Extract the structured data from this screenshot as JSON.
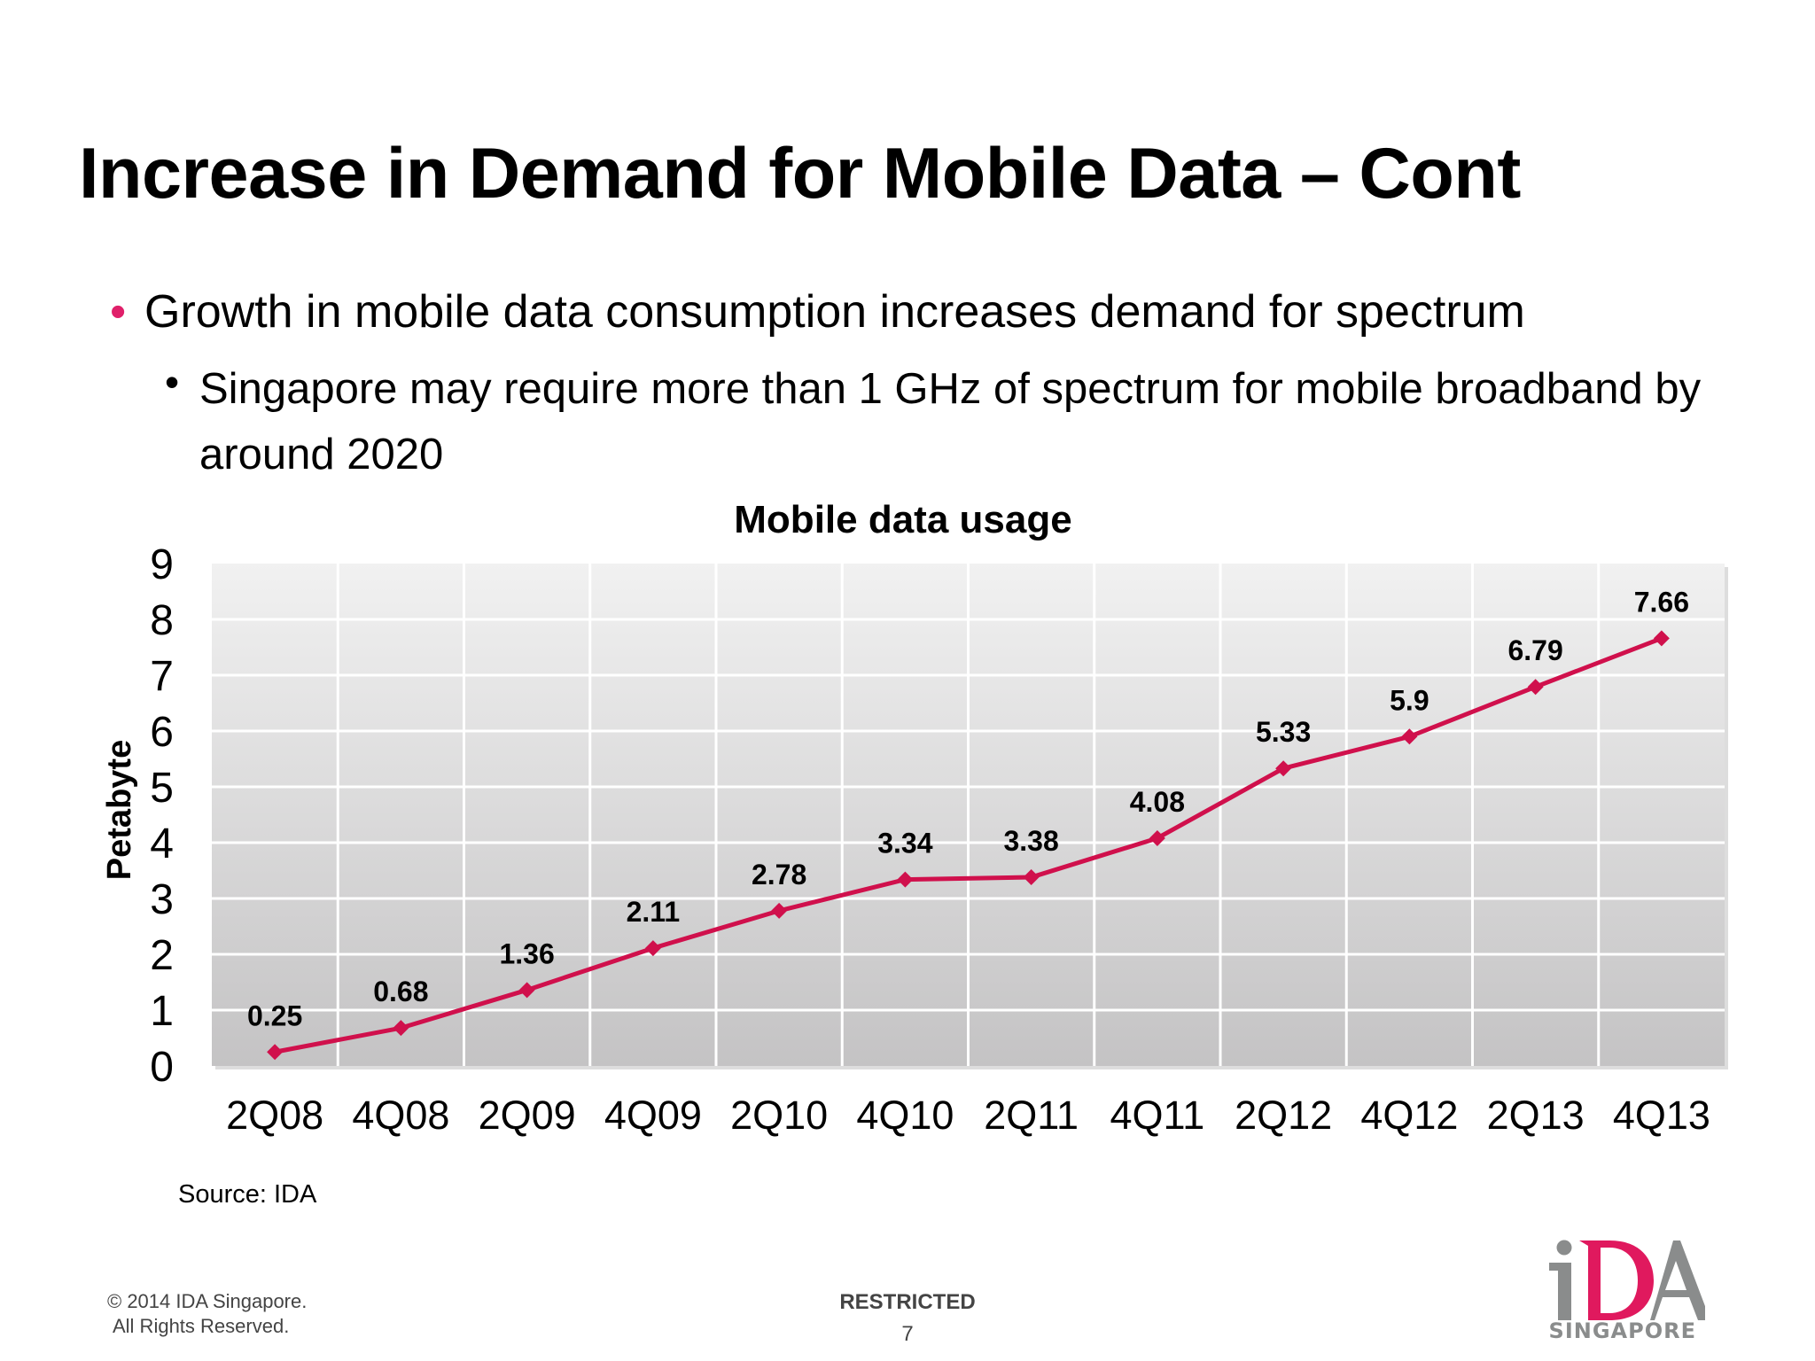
{
  "slide": {
    "title": "Increase in Demand for Mobile Data – Cont",
    "bullets": [
      {
        "text": "Growth in mobile data consumption increases demand for spectrum"
      },
      {
        "text": "Singapore may require more than 1 GHz of spectrum for mobile broadband by around 2020"
      }
    ],
    "source": "Source: IDA",
    "footer": {
      "copyright_line1": "© 2014 IDA Singapore.",
      "copyright_line2": "All Rights Reserved.",
      "classification": "RESTRICTED",
      "page_number": "7"
    },
    "logo": {
      "text": "iDA",
      "subtext": "SINGAPORE",
      "accent_color": "#e0195e",
      "gray_color": "#8a8c8c"
    }
  },
  "chart_data": {
    "type": "line",
    "title": "Mobile data usage",
    "xlabel": "",
    "ylabel": "Petabyte",
    "ylim": [
      0,
      9
    ],
    "yticks": [
      0,
      1,
      2,
      3,
      4,
      5,
      6,
      7,
      8,
      9
    ],
    "grid": true,
    "legend": "none",
    "categories": [
      "2Q08",
      "4Q08",
      "2Q09",
      "4Q09",
      "2Q10",
      "4Q10",
      "2Q11",
      "4Q11",
      "2Q12",
      "4Q12",
      "2Q13",
      "4Q13"
    ],
    "series": [
      {
        "values": [
          0.25,
          0.68,
          1.36,
          2.11,
          2.78,
          3.34,
          3.38,
          4.08,
          5.33,
          5.9,
          6.79,
          7.66
        ],
        "color": "#d0104c",
        "marker": "diamond"
      }
    ],
    "data_labels": [
      "0.25",
      "0.68",
      "1.36",
      "2.11",
      "2.78",
      "3.34",
      "3.38",
      "4.08",
      "5.33",
      "5.9",
      "6.79",
      "7.66"
    ]
  }
}
